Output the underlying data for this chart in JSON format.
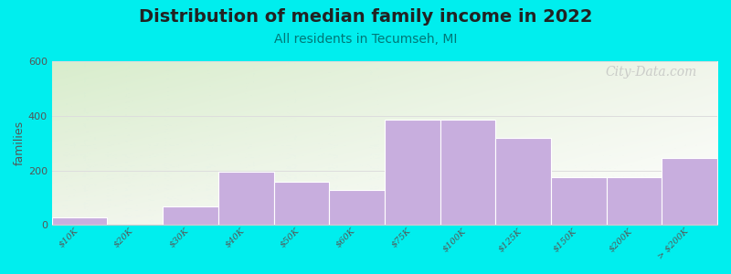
{
  "title": "Distribution of median family income in 2022",
  "subtitle": "All residents in Tecumseh, MI",
  "watermark": "City-Data.com",
  "ylabel": "families",
  "categories": [
    "$10K",
    "$20K",
    "$30K",
    "$40K",
    "$50K",
    "$60K",
    "$75K",
    "$100K",
    "$125K",
    "$150K",
    "$200K",
    "> $200K"
  ],
  "values": [
    30,
    0,
    70,
    195,
    160,
    130,
    385,
    385,
    320,
    175,
    175,
    245
  ],
  "bar_color": "#c8aede",
  "bar_edge_color": "#ffffff",
  "bg_color_bottom_left": "#e6f0d8",
  "bg_color_top_right": "#f8fbf5",
  "bg_color_bottom_right": "#ffffff",
  "outer_bg_color": "#00eeee",
  "title_color": "#222222",
  "subtitle_color": "#007777",
  "ylabel_color": "#555555",
  "tick_color": "#555555",
  "ylim": [
    0,
    600
  ],
  "yticks": [
    0,
    200,
    400,
    600
  ],
  "title_fontsize": 14,
  "subtitle_fontsize": 10,
  "watermark_color": "#bbbbbb",
  "watermark_fontsize": 10,
  "grid_color": "#dddddd"
}
